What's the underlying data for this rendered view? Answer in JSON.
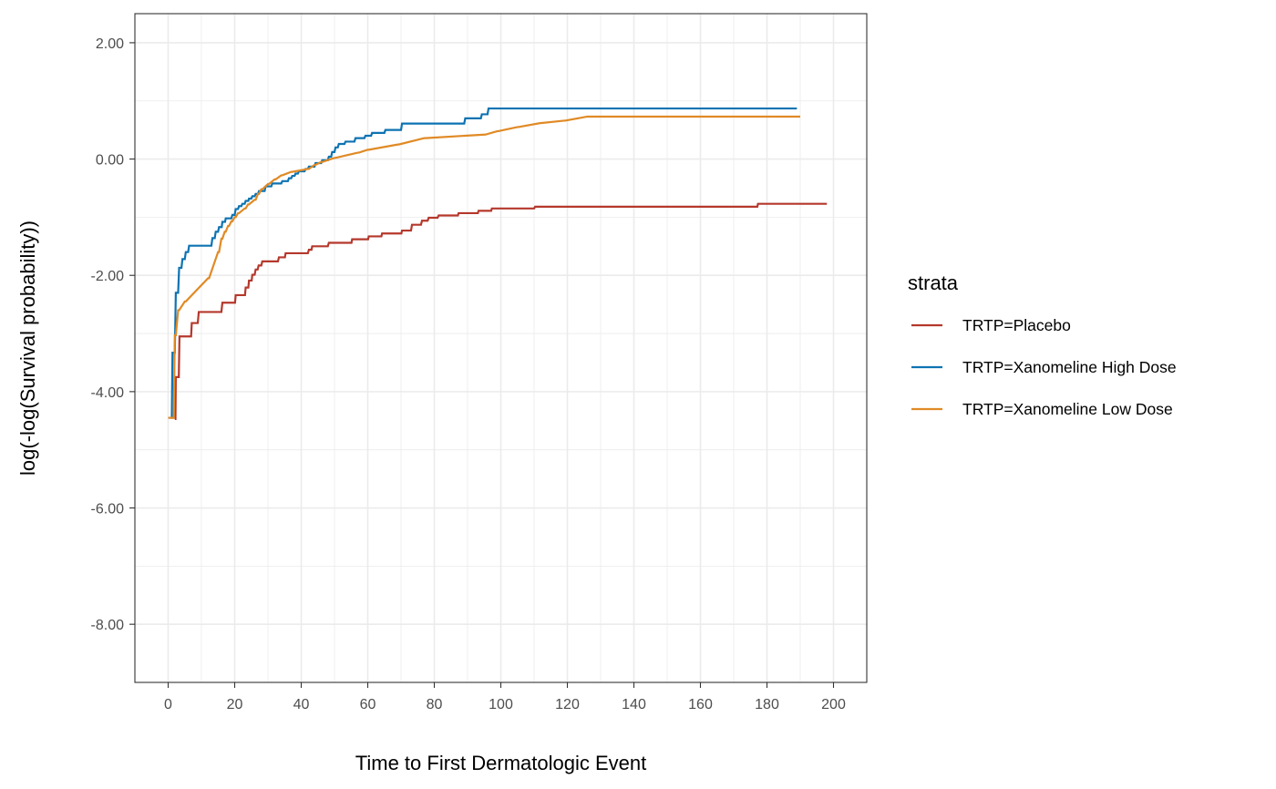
{
  "chart_data": {
    "type": "line",
    "step": true,
    "xlabel": "Time to First Dermatologic Event",
    "ylabel": "log(-log(Survival probability))",
    "xlim": [
      -10,
      210
    ],
    "ylim": [
      -9.0,
      2.5
    ],
    "xticks": [
      0,
      20,
      40,
      60,
      80,
      100,
      120,
      140,
      160,
      180,
      200
    ],
    "xtick_labels": [
      "0",
      "20",
      "40",
      "60",
      "80",
      "100",
      "120",
      "140",
      "160",
      "180",
      "200"
    ],
    "yticks": [
      2,
      0,
      -2,
      -4,
      -6,
      -8
    ],
    "ytick_labels": [
      "2.00",
      "0.00",
      "-2.00",
      "-4.00",
      "-6.00",
      "-8.00"
    ],
    "grid": true,
    "legend": {
      "title": "strata",
      "position": "right"
    },
    "series": [
      {
        "name": "TRTP=Placebo",
        "color": "#B5382C",
        "x": [
          2,
          2.2,
          2.3,
          3.2,
          3.4,
          6.9,
          7.1,
          8.9,
          9.2,
          16.0,
          16.3,
          20.1,
          20.3,
          23.1,
          23.3,
          24.1,
          24.3,
          25.1,
          25.3,
          26.0,
          26.3,
          26.9,
          27.2,
          28.0,
          28.3,
          33.0,
          33.3,
          35.1,
          35.3,
          42.0,
          42.3,
          43.1,
          43.3,
          48.0,
          48.3,
          55.1,
          55.3,
          60.1,
          60.3,
          64.1,
          64.3,
          70.1,
          70.3,
          73.0,
          73.3,
          76.0,
          76.3,
          78.0,
          78.3,
          81.0,
          81.3,
          87.1,
          87.3,
          93.1,
          93.3,
          97.1,
          97.3,
          110.0,
          110.3,
          177.1,
          177.3,
          198
        ],
        "y": [
          -4.47,
          -4.47,
          -3.75,
          -3.75,
          -3.05,
          -3.05,
          -2.82,
          -2.82,
          -2.63,
          -2.63,
          -2.47,
          -2.47,
          -2.34,
          -2.34,
          -2.21,
          -2.21,
          -2.09,
          -2.09,
          -1.99,
          -1.99,
          -1.9,
          -1.9,
          -1.83,
          -1.83,
          -1.76,
          -1.76,
          -1.69,
          -1.69,
          -1.62,
          -1.62,
          -1.56,
          -1.56,
          -1.5,
          -1.5,
          -1.44,
          -1.44,
          -1.38,
          -1.38,
          -1.33,
          -1.33,
          -1.28,
          -1.28,
          -1.23,
          -1.23,
          -1.13,
          -1.13,
          -1.06,
          -1.06,
          -1.01,
          -1.01,
          -0.97,
          -0.97,
          -0.93,
          -0.93,
          -0.89,
          -0.89,
          -0.85,
          -0.85,
          -0.82,
          -0.82,
          -0.77,
          -0.77
        ]
      },
      {
        "name": "TRTP=Xanomeline High Dose",
        "color": "#0D73B2",
        "x": [
          1,
          1.1,
          1.3,
          2.0,
          2.3,
          3.0,
          3.3,
          4.0,
          4.3,
          5.0,
          5.3,
          6.0,
          6.3,
          13.0,
          13.3,
          14.0,
          14.3,
          15.0,
          15.3,
          16.1,
          16.3,
          17.1,
          17.3,
          19.0,
          19.3,
          20.0,
          20.3,
          21.0,
          21.3,
          22.0,
          22.3,
          23.0,
          23.3,
          24.1,
          24.3,
          25.0,
          25.3,
          26.0,
          26.3,
          27.0,
          27.3,
          29.0,
          29.3,
          31.0,
          31.3,
          34.0,
          34.3,
          36.0,
          36.3,
          37.0,
          37.3,
          38.0,
          38.3,
          39.0,
          39.3,
          41.0,
          41.3,
          42.0,
          42.3,
          44.0,
          44.3,
          46.0,
          46.3,
          48.0,
          48.3,
          49.0,
          49.3,
          50.0,
          50.3,
          51.0,
          51.3,
          53.0,
          53.3,
          56.0,
          56.3,
          59.0,
          59.3,
          61.0,
          61.3,
          65.0,
          65.3,
          70.0,
          70.3,
          89.0,
          89.3,
          94.0,
          94.3,
          96.0,
          96.3,
          189
        ],
        "y": [
          -4.45,
          -4.45,
          -3.33,
          -3.33,
          -2.3,
          -2.3,
          -1.87,
          -1.87,
          -1.72,
          -1.72,
          -1.6,
          -1.6,
          -1.49,
          -1.49,
          -1.36,
          -1.36,
          -1.25,
          -1.25,
          -1.17,
          -1.17,
          -1.08,
          -1.08,
          -1.02,
          -1.02,
          -0.96,
          -0.96,
          -0.86,
          -0.86,
          -0.81,
          -0.81,
          -0.77,
          -0.77,
          -0.72,
          -0.72,
          -0.68,
          -0.68,
          -0.64,
          -0.64,
          -0.6,
          -0.6,
          -0.55,
          -0.55,
          -0.47,
          -0.47,
          -0.42,
          -0.42,
          -0.38,
          -0.38,
          -0.33,
          -0.33,
          -0.29,
          -0.29,
          -0.25,
          -0.25,
          -0.21,
          -0.21,
          -0.17,
          -0.17,
          -0.13,
          -0.13,
          -0.07,
          -0.07,
          -0.02,
          -0.02,
          0.04,
          0.04,
          0.12,
          0.12,
          0.2,
          0.2,
          0.26,
          0.26,
          0.3,
          0.3,
          0.36,
          0.36,
          0.4,
          0.4,
          0.45,
          0.45,
          0.5,
          0.5,
          0.61,
          0.61,
          0.7,
          0.7,
          0.77,
          0.77,
          0.87,
          0.87
        ]
      },
      {
        "name": "TRTP=Xanomeline Low Dose",
        "color": "#E08A25",
        "x": [
          0,
          1.7,
          2.0,
          2.3,
          3.0,
          3.3,
          5.0,
          5.3,
          12.0,
          12.3,
          15.0,
          15.3,
          16.0,
          16.3,
          17.0,
          17.3,
          18.0,
          18.3,
          19.0,
          19.3,
          20.0,
          20.3,
          21.0,
          21.3,
          23.0,
          23.3,
          24.0,
          24.3,
          26.0,
          26.3,
          27.0,
          27.3,
          28.0,
          28.3,
          30.0,
          30.3,
          32.0,
          32.3,
          34.0,
          34.3,
          37.0,
          37.3,
          42.0,
          42.3,
          44.0,
          44.3,
          46.0,
          46.3,
          50.0,
          50.3,
          57.0,
          57.3,
          60.0,
          60.3,
          69.0,
          69.3,
          77.0,
          77.3,
          95.0,
          95.3,
          99.0,
          99.3,
          105.0,
          105.3,
          112.0,
          112.3,
          119.0,
          119.3,
          126.0,
          126.3,
          190
        ],
        "y": [
          -4.45,
          -4.45,
          -3.03,
          -3.03,
          -2.6,
          -2.6,
          -2.45,
          -2.45,
          -2.05,
          -2.05,
          -1.6,
          -1.6,
          -1.37,
          -1.37,
          -1.25,
          -1.25,
          -1.15,
          -1.15,
          -1.07,
          -1.07,
          -1.0,
          -1.0,
          -0.93,
          -0.93,
          -0.85,
          -0.85,
          -0.78,
          -0.78,
          -0.7,
          -0.7,
          -0.6,
          -0.6,
          -0.52,
          -0.52,
          -0.43,
          -0.43,
          -0.35,
          -0.35,
          -0.28,
          -0.28,
          -0.22,
          -0.22,
          -0.17,
          -0.17,
          -0.1,
          -0.1,
          -0.05,
          -0.05,
          0.02,
          0.02,
          0.11,
          0.11,
          0.16,
          0.16,
          0.25,
          0.25,
          0.36,
          0.36,
          0.42,
          0.42,
          0.48,
          0.48,
          0.55,
          0.55,
          0.62,
          0.62,
          0.66,
          0.66,
          0.73,
          0.73,
          0.73
        ]
      }
    ]
  }
}
